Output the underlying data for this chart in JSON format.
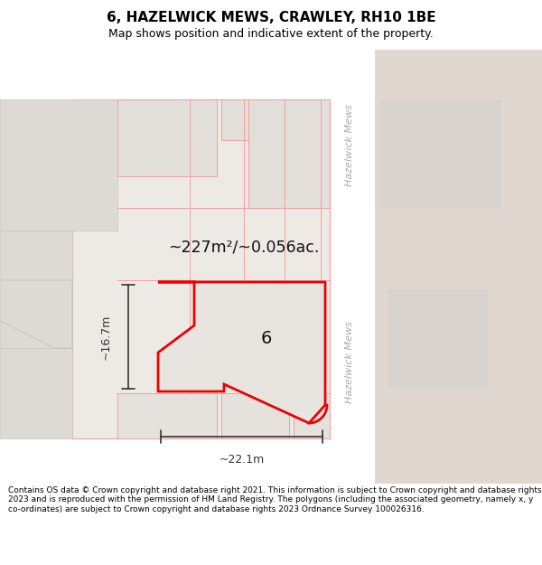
{
  "title": "6, HAZELWICK MEWS, CRAWLEY, RH10 1BE",
  "subtitle": "Map shows position and indicative extent of the property.",
  "footer": "Contains OS data © Crown copyright and database right 2021. This information is subject to Crown copyright and database rights 2023 and is reproduced with the permission of HM Land Registry. The polygons (including the associated geometry, namely x, y co-ordinates) are subject to Crown copyright and database rights 2023 Ordnance Survey 100026316.",
  "map_bg": "#f2eeea",
  "road_fill": "#ffffff",
  "road_label_color": "#aaaaaa",
  "far_right_fill": "#e0d8d0",
  "building_fill": "#e8e4e0",
  "building_edge": "#d0c8c0",
  "plot_fill": "#eeebe7",
  "plot_edge": "#f0a0a0",
  "highlight_fill": "#e8e4df",
  "highlight_edge": "#ee0000",
  "dim_color": "#333333",
  "label_color": "#111111",
  "area_text": "~227m²/~0.056ac.",
  "number_label": "6",
  "dim_width": "~22.1m",
  "dim_height": "~16.7m",
  "road_label": "Hazelwick Mews",
  "title_fontsize": 11,
  "subtitle_fontsize": 9,
  "footer_fontsize": 6.5
}
